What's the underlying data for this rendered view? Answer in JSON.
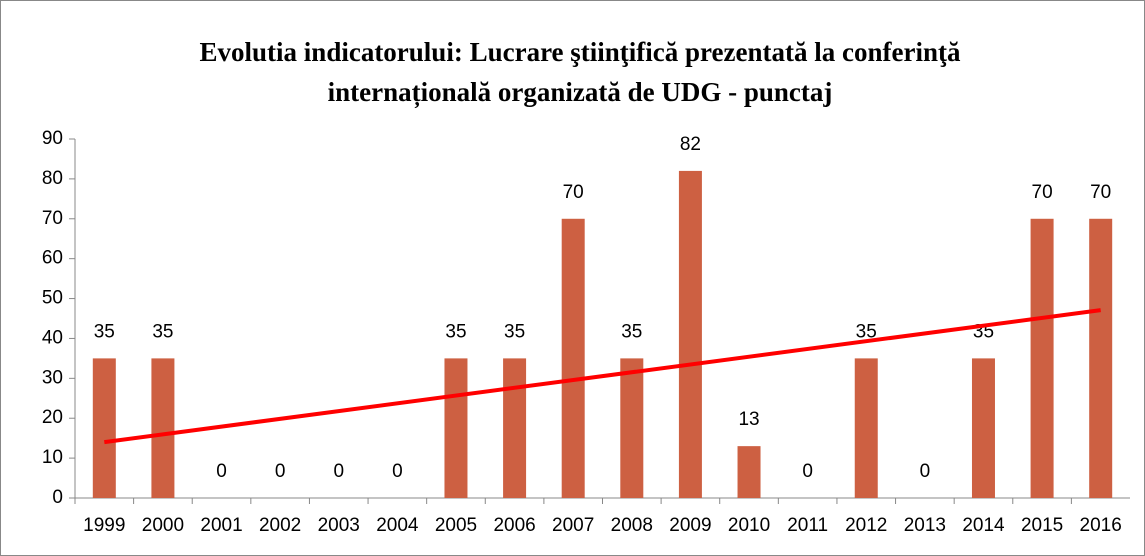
{
  "chart_data": {
    "type": "bar",
    "title": [
      "Evolutia indicatorului: Lucrare ştiinţifică prezentată la conferinţă",
      "internațională organizată de UDG - punctaj"
    ],
    "categories": [
      "1999",
      "2000",
      "2001",
      "2002",
      "2003",
      "2004",
      "2005",
      "2006",
      "2007",
      "2008",
      "2009",
      "2010",
      "2011",
      "2012",
      "2013",
      "2014",
      "2015",
      "2016"
    ],
    "values": [
      35,
      35,
      0,
      0,
      0,
      0,
      35,
      35,
      70,
      35,
      82,
      13,
      0,
      35,
      0,
      35,
      70,
      70
    ],
    "color": "#cd6042",
    "trendline": {
      "color": "#ff0000",
      "values": [
        14.0,
        47.1
      ]
    },
    "ylim": [
      0,
      90
    ],
    "yticks": [
      0,
      10,
      20,
      30,
      40,
      50,
      60,
      70,
      80,
      90
    ],
    "grid": false
  }
}
